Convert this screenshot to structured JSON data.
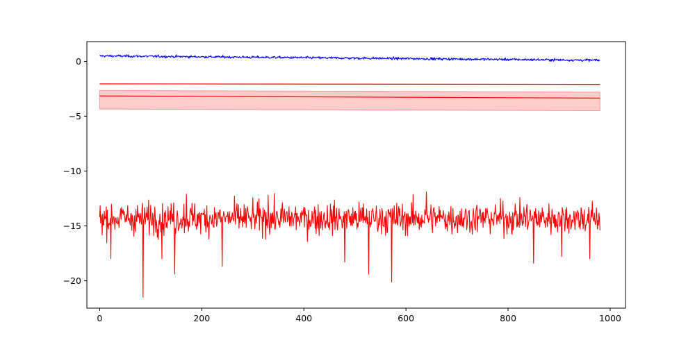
{
  "chart_data": {
    "type": "line",
    "title": "",
    "xlabel": "",
    "ylabel": "",
    "xlim": [
      -25,
      1030
    ],
    "ylim": [
      -22.5,
      1.8
    ],
    "grid": false,
    "legend": null,
    "x_ticks": [
      0,
      200,
      400,
      600,
      800,
      1000
    ],
    "x_tick_labels": [
      "0",
      "200",
      "400",
      "600",
      "800",
      "1000"
    ],
    "y_ticks": [
      0,
      -5,
      -10,
      -15,
      -20
    ],
    "y_tick_labels": [
      "0",
      "−5",
      "−10",
      "−15",
      "−20"
    ],
    "n_points": 981,
    "series": [
      {
        "kind": "noisy-line",
        "color": "#0000ff",
        "trend": [
          [
            0,
            0.5
          ],
          [
            980,
            0.1
          ]
        ],
        "noise_amplitude": 0.08
      },
      {
        "kind": "line",
        "color": "#ff0000",
        "trend": [
          [
            0,
            -2.05
          ],
          [
            980,
            -2.1
          ]
        ]
      },
      {
        "kind": "band-with-line",
        "color": "#ff0000",
        "band_color": "#ff0000",
        "band_opacity": 0.2,
        "line": [
          [
            0,
            -3.15
          ],
          [
            980,
            -3.35
          ]
        ],
        "band_upper": [
          [
            0,
            -2.65
          ],
          [
            980,
            -2.8
          ]
        ],
        "band_lower": [
          [
            0,
            -4.35
          ],
          [
            980,
            -4.5
          ]
        ]
      },
      {
        "kind": "noisy-line",
        "color": "#ff0000",
        "trend": [
          [
            0,
            -14.3
          ],
          [
            980,
            -14.3
          ]
        ],
        "noise_amplitude": 1.0,
        "min_value": -21.5,
        "max_value": -11.9,
        "spikes": [
          [
            85,
            -21.5
          ],
          [
            147,
            -19.4
          ],
          [
            240,
            -18.7
          ],
          [
            480,
            -18.3
          ],
          [
            527,
            -19.4
          ],
          [
            572,
            -20.1
          ],
          [
            850,
            -18.4
          ],
          [
            905,
            -17.8
          ],
          [
            960,
            -18.0
          ],
          [
            22,
            -18.0
          ],
          [
            122,
            -18.0
          ],
          [
            640,
            -11.9
          ],
          [
            170,
            -12.1
          ],
          [
            330,
            -12.2
          ]
        ]
      }
    ]
  }
}
